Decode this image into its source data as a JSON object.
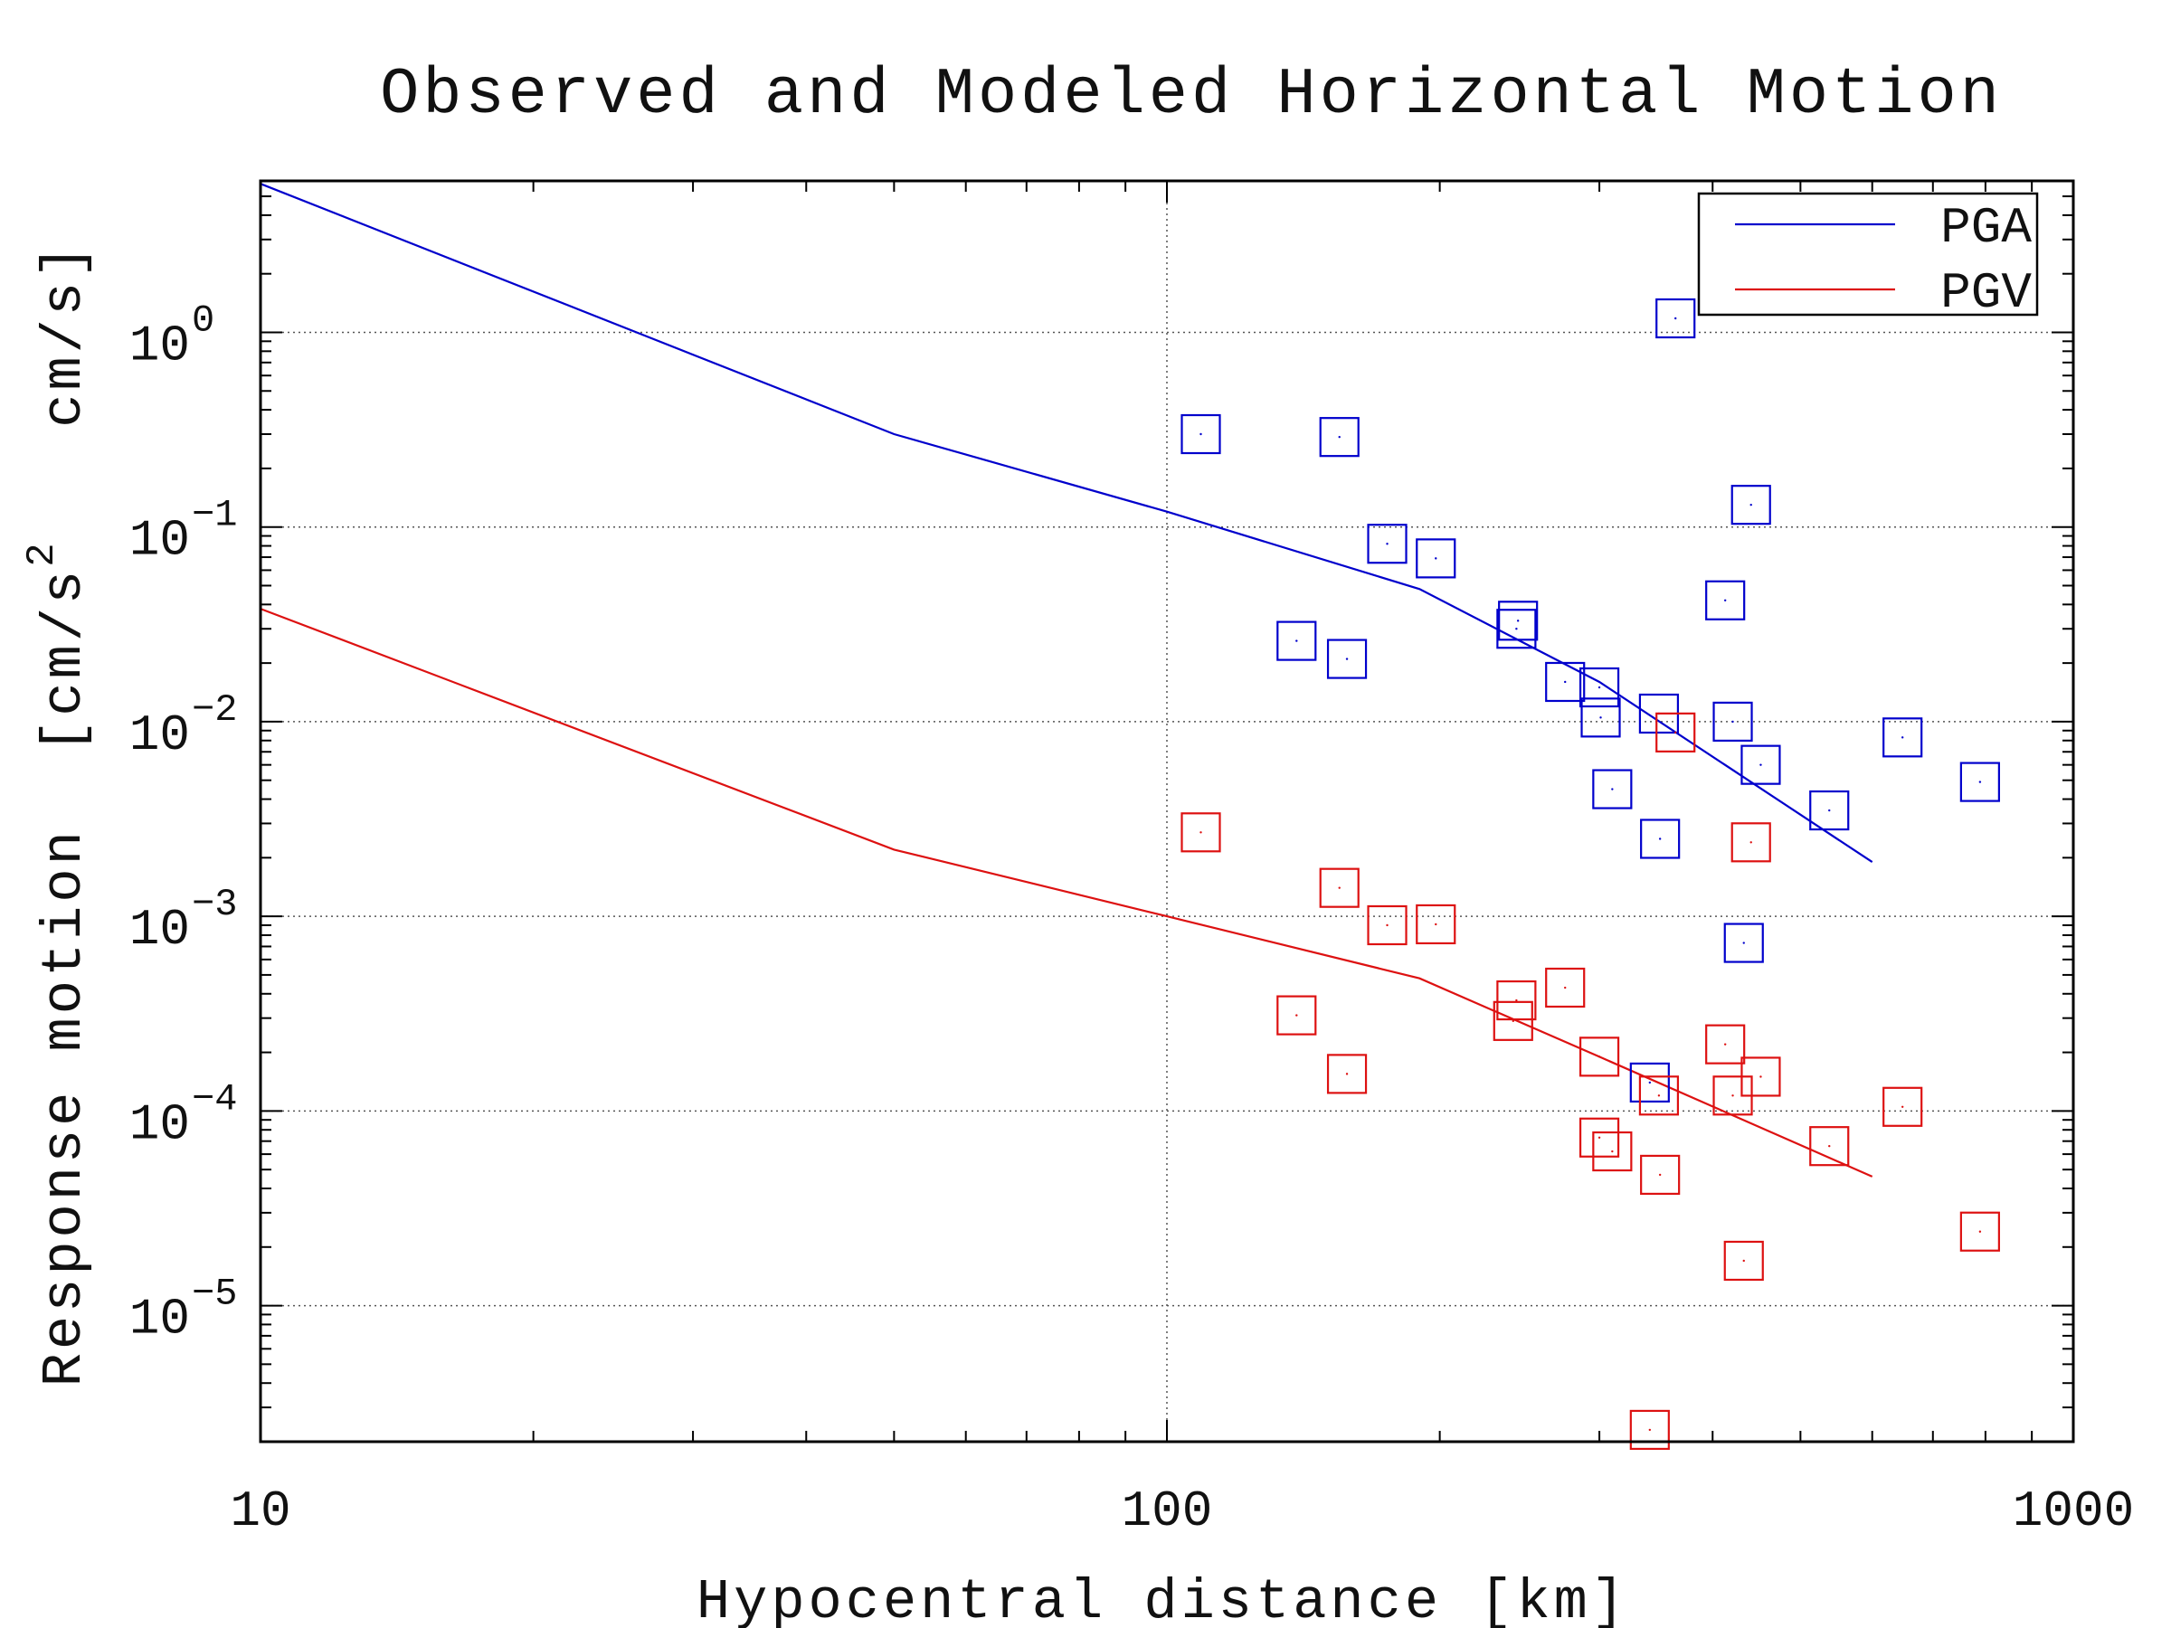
{
  "chart_data": {
    "type": "scatter",
    "title": "Observed and Modeled Horizontal Motion",
    "xlabel": "Hypocentral distance [km]",
    "ylabel": "Response motion  [cm/s",
    "ylabel_sup": "2",
    "ylabel_tail": "   cm/s]",
    "xscale": "log",
    "yscale": "log",
    "xlim": [
      10,
      1000
    ],
    "ylim": [
      2e-06,
      6
    ],
    "x_ticks": [
      {
        "value": 10,
        "label": "10"
      },
      {
        "value": 100,
        "label": "100"
      },
      {
        "value": 1000,
        "label": "1000"
      }
    ],
    "y_ticks": [
      {
        "value": 1e-05,
        "base": "10",
        "exp": "−5"
      },
      {
        "value": 0.0001,
        "base": "10",
        "exp": "−4"
      },
      {
        "value": 0.001,
        "base": "10",
        "exp": "−3"
      },
      {
        "value": 0.01,
        "base": "10",
        "exp": "−2"
      },
      {
        "value": 0.1,
        "base": "10",
        "exp": "−1"
      },
      {
        "value": 1,
        "base": "10",
        "exp": "0"
      }
    ],
    "grid": true,
    "legend": {
      "position": "top-right",
      "entries": [
        "PGA",
        "PGV"
      ]
    },
    "colors": {
      "PGA": "#0000cc",
      "PGV": "#dd1111"
    },
    "lines": [
      {
        "name": "PGA",
        "x": [
          10,
          50,
          100,
          190,
          300,
          600
        ],
        "y": [
          5.8,
          0.3,
          0.12,
          0.048,
          0.016,
          0.0019
        ]
      },
      {
        "name": "PGV",
        "x": [
          10,
          50,
          100,
          190,
          300,
          600
        ],
        "y": [
          0.038,
          0.0022,
          0.001,
          0.00048,
          0.00019,
          4.6e-05
        ]
      }
    ],
    "scatter": [
      {
        "name": "PGA",
        "points": [
          [
            109,
            0.3
          ],
          [
            155,
            0.29
          ],
          [
            175,
            0.082
          ],
          [
            198,
            0.069
          ],
          [
            139,
            0.026
          ],
          [
            158,
            0.021
          ],
          [
            243,
            0.03
          ],
          [
            244,
            0.033
          ],
          [
            275,
            0.016
          ],
          [
            300,
            0.015
          ],
          [
            301,
            0.0105
          ],
          [
            310,
            0.0045
          ],
          [
            349,
            0.011
          ],
          [
            350,
            0.0025
          ],
          [
            364,
            1.18
          ],
          [
            413,
            0.042
          ],
          [
            421,
            0.01
          ],
          [
            433,
            0.00073
          ],
          [
            441,
            0.13
          ],
          [
            452,
            0.006
          ],
          [
            538,
            0.0035
          ],
          [
            648,
            0.0083
          ],
          [
            789,
            0.0049
          ],
          [
            341,
            0.00014
          ]
        ]
      },
      {
        "name": "PGV",
        "points": [
          [
            109,
            0.0027
          ],
          [
            155,
            0.0014
          ],
          [
            175,
            0.0009
          ],
          [
            198,
            0.00091
          ],
          [
            139,
            0.00031
          ],
          [
            158,
            0.000155
          ],
          [
            243,
            0.00037
          ],
          [
            241,
            0.00029
          ],
          [
            275,
            0.00043
          ],
          [
            300,
            0.00019
          ],
          [
            300,
            7.3e-05
          ],
          [
            310,
            6.2e-05
          ],
          [
            349,
            0.00012
          ],
          [
            350,
            4.7e-05
          ],
          [
            364,
            0.0088
          ],
          [
            413,
            0.00022
          ],
          [
            421,
            0.00012
          ],
          [
            433,
            1.7e-05
          ],
          [
            441,
            0.0024
          ],
          [
            452,
            0.00015
          ],
          [
            538,
            6.6e-05
          ],
          [
            648,
            0.000105
          ],
          [
            789,
            2.4e-05
          ],
          [
            341,
            2.3e-06
          ]
        ]
      }
    ]
  }
}
